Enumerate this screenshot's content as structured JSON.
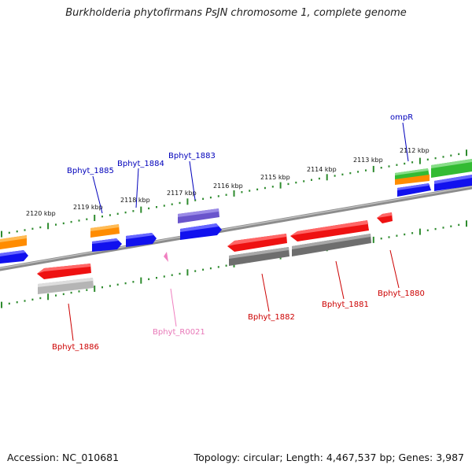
{
  "title": "Burkholderia phytofirmans PsJN chromosome 1, complete genome",
  "footer": {
    "accession": "Accession: NC_010681",
    "summary": "Topology: circular; Length: 4,467,537 bp; Genes: 3,987"
  },
  "colors": {
    "backbone": "#8a8a8a",
    "ticks": "#2e8b2e",
    "red_gene": "#ee1111",
    "blue_gene": "#1111ee",
    "orange_gene": "#ff8c00",
    "purple_gene": "#6a55cc",
    "green_gene": "#33bb33",
    "gray_gene": "#6e6e6e",
    "light_gray_gene": "#b5b5b5",
    "pink_rna": "#f080c0",
    "blue_label": "#0000bb",
    "red_label": "#cc0000",
    "pink_label": "#e878b8"
  },
  "scale_labels": [
    "2112 kbp",
    "2113 kbp",
    "2114 kbp",
    "2115 kbp",
    "2116 kbp",
    "2117 kbp",
    "2118 kbp",
    "2119 kbp",
    "2120 kbp"
  ],
  "genes": [
    {
      "name": "ompR",
      "color": "blue_label"
    },
    {
      "name": "Bphyt_1883",
      "color": "blue_label"
    },
    {
      "name": "Bphyt_1884",
      "color": "blue_label"
    },
    {
      "name": "Bphyt_1885",
      "color": "blue_label"
    },
    {
      "name": "Bphyt_1880",
      "color": "red_label"
    },
    {
      "name": "Bphyt_1881",
      "color": "red_label"
    },
    {
      "name": "Bphyt_1882",
      "color": "red_label"
    },
    {
      "name": "Bphyt_R0021",
      "color": "pink_label"
    },
    {
      "name": "Bphyt_1886",
      "color": "red_label"
    }
  ]
}
